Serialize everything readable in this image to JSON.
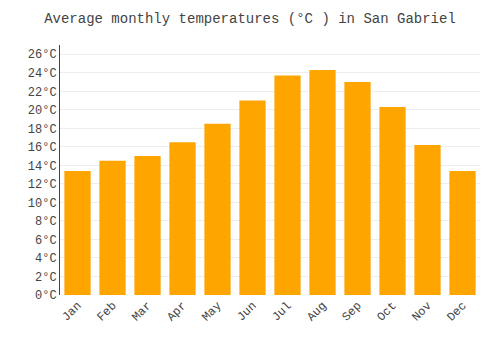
{
  "chart_data": {
    "type": "bar",
    "title": "Average monthly temperatures (°C ) in San Gabriel",
    "categories": [
      "Jan",
      "Feb",
      "Mar",
      "Apr",
      "May",
      "Jun",
      "Jul",
      "Aug",
      "Sep",
      "Oct",
      "Nov",
      "Dec"
    ],
    "values": [
      13.4,
      14.5,
      15.0,
      16.5,
      18.5,
      21.0,
      23.7,
      24.3,
      23.0,
      20.3,
      16.2,
      13.4
    ],
    "color": "#FFA500",
    "ylim": [
      0,
      27
    ],
    "yticks": [
      {
        "value": 0,
        "label": "0°C"
      },
      {
        "value": 2,
        "label": "2°C"
      },
      {
        "value": 4,
        "label": "4°C"
      },
      {
        "value": 6,
        "label": "6°C"
      },
      {
        "value": 8,
        "label": "8°C"
      },
      {
        "value": 10,
        "label": "10°C"
      },
      {
        "value": 12,
        "label": "12°C"
      },
      {
        "value": 14,
        "label": "14°C"
      },
      {
        "value": 16,
        "label": "16°C"
      },
      {
        "value": 18,
        "label": "18°C"
      },
      {
        "value": 20,
        "label": "20°C"
      },
      {
        "value": 22,
        "label": "22°C"
      },
      {
        "value": 24,
        "label": "24°C"
      },
      {
        "value": 26,
        "label": "26°C"
      }
    ],
    "grid": true
  }
}
